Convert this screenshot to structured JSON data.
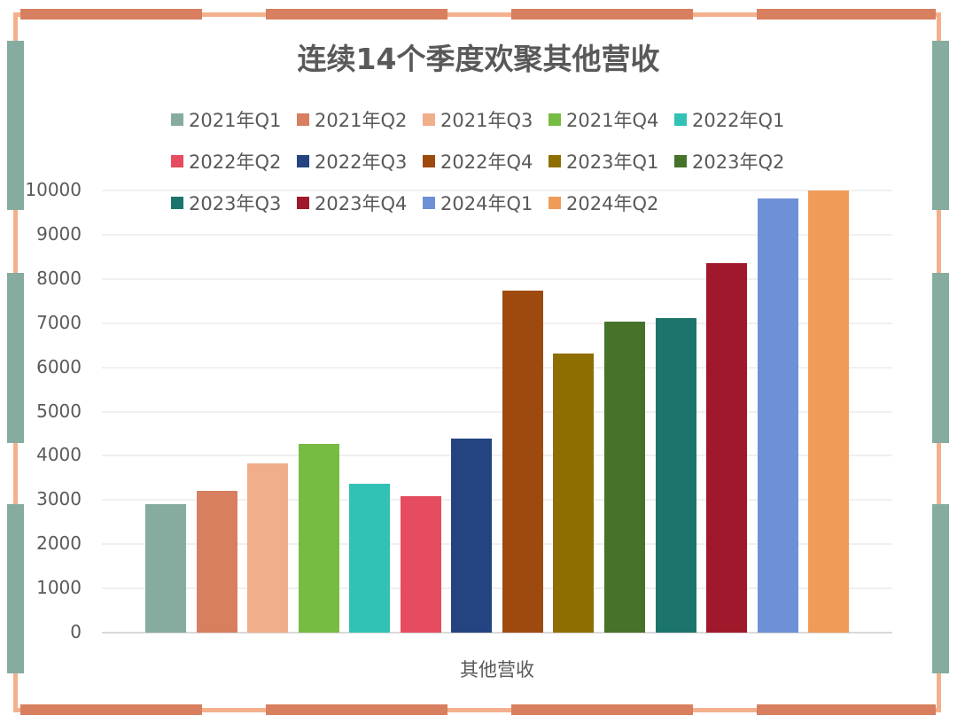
{
  "chart_data": {
    "type": "bar",
    "title": "连续14个季度欢聚其他营收",
    "xlabel": "其他营收",
    "ylabel": "",
    "categories": [
      "其他营收"
    ],
    "ylim": [
      0,
      10000
    ],
    "yticks": [
      "0",
      "1000",
      "2000",
      "3000",
      "4000",
      "5000",
      "6000",
      "7000",
      "8000",
      "9000",
      "10000"
    ],
    "grid": true,
    "legend_position": "top",
    "series": [
      {
        "name": "2021年Q1",
        "values": [
          2900
        ],
        "color": "#86AC9F"
      },
      {
        "name": "2021年Q2",
        "values": [
          3200
        ],
        "color": "#D77F5F"
      },
      {
        "name": "2021年Q3",
        "values": [
          3830
        ],
        "color": "#F1AE8A"
      },
      {
        "name": "2021年Q4",
        "values": [
          4260
        ],
        "color": "#76BC42"
      },
      {
        "name": "2022年Q1",
        "values": [
          3360
        ],
        "color": "#31C2B5"
      },
      {
        "name": "2022年Q2",
        "values": [
          3080
        ],
        "color": "#E54C5F"
      },
      {
        "name": "2022年Q3",
        "values": [
          4390
        ],
        "color": "#244381"
      },
      {
        "name": "2022年Q4",
        "values": [
          7740
        ],
        "color": "#9E4A0E"
      },
      {
        "name": "2023年Q1",
        "values": [
          6310
        ],
        "color": "#8F6E00"
      },
      {
        "name": "2023年Q2",
        "values": [
          7030
        ],
        "color": "#46722A"
      },
      {
        "name": "2023年Q3",
        "values": [
          7120
        ],
        "color": "#1D746C"
      },
      {
        "name": "2023年Q4",
        "values": [
          8350
        ],
        "color": "#A0182B"
      },
      {
        "name": "2024年Q1",
        "values": [
          9810
        ],
        "color": "#6E90D6"
      },
      {
        "name": "2024年Q2",
        "values": [
          10000
        ],
        "color": "#F09C58"
      }
    ]
  },
  "decor": {
    "frame_color": "#F4B08C",
    "top_bottom_segment_color": "#D77F5F",
    "side_segment_color": "#86AC9F"
  }
}
